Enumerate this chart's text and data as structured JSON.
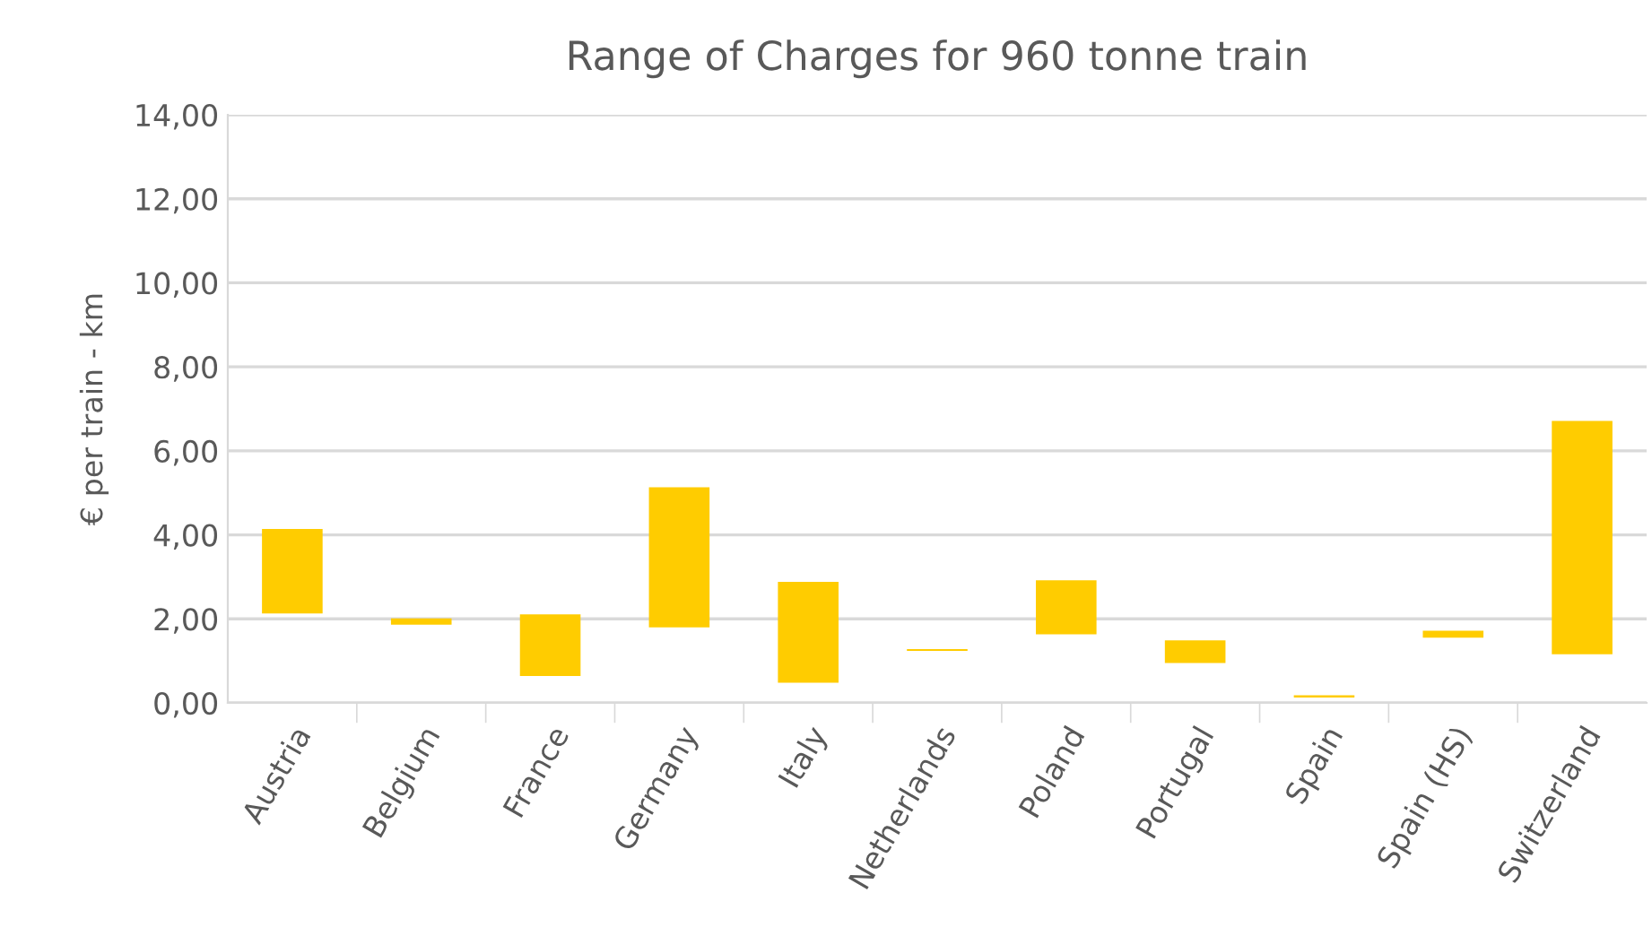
{
  "chart_data": {
    "type": "bar",
    "title": "Range of Charges for 960 tonne train",
    "ylabel": "€ per train - km",
    "categories": [
      "Austria",
      "Belgium",
      "France",
      "Germany",
      "Italy",
      "Netherlands",
      "Poland",
      "Portugal",
      "Spain",
      "Spain (HS)",
      "Switzerland"
    ],
    "values": [
      2.01,
      0.15,
      1.47,
      3.33,
      2.4,
      0.04,
      1.29,
      0.54,
      0.05,
      0.17,
      5.55
    ],
    "base": [
      2.13,
      1.86,
      0.64,
      1.8,
      0.48,
      1.24,
      1.63,
      0.95,
      0.13,
      1.55,
      1.16
    ],
    "color": "#ffcc00",
    "ylim": [
      0,
      14
    ],
    "yticks": [
      {
        "value": 0,
        "label": "0,00"
      },
      {
        "value": 2,
        "label": "2,00"
      },
      {
        "value": 4,
        "label": "4,00"
      },
      {
        "value": 6,
        "label": "6,00"
      },
      {
        "value": 8,
        "label": "8,00"
      },
      {
        "value": 10,
        "label": "10,00"
      },
      {
        "value": 12,
        "label": "12,00"
      },
      {
        "value": 14,
        "label": "14,00"
      }
    ],
    "grid": "y"
  }
}
